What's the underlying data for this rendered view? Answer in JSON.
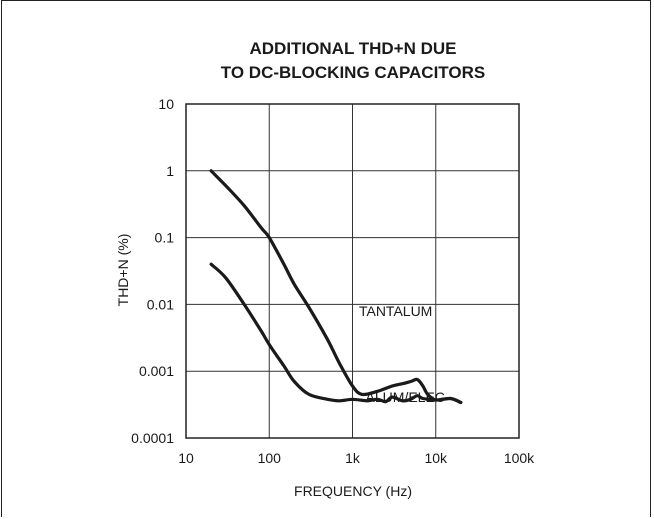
{
  "chart_data": {
    "type": "line",
    "title": [
      "ADDITIONAL THD+N DUE",
      "TO DC-BLOCKING CAPACITORS"
    ],
    "xlabel": "FREQUENCY (Hz)",
    "ylabel": "THD+N (%)",
    "x_scale": "log",
    "y_scale": "log",
    "xlim": [
      10,
      100000
    ],
    "ylim": [
      0.0001,
      10
    ],
    "x_ticks": [
      {
        "value": 10,
        "label": "10"
      },
      {
        "value": 100,
        "label": "100"
      },
      {
        "value": 1000,
        "label": "1k"
      },
      {
        "value": 10000,
        "label": "10k"
      },
      {
        "value": 100000,
        "label": "100k"
      }
    ],
    "y_ticks": [
      {
        "value": 10,
        "label": "10"
      },
      {
        "value": 1,
        "label": "1"
      },
      {
        "value": 0.1,
        "label": "0.1"
      },
      {
        "value": 0.01,
        "label": "0.01"
      },
      {
        "value": 0.001,
        "label": "0.001"
      },
      {
        "value": 0.0001,
        "label": "0.0001"
      }
    ],
    "grid": true,
    "series": [
      {
        "name": "TANTALUM",
        "points": [
          [
            20,
            1.0
          ],
          [
            30,
            0.6
          ],
          [
            50,
            0.3
          ],
          [
            80,
            0.14
          ],
          [
            100,
            0.1
          ],
          [
            150,
            0.04
          ],
          [
            200,
            0.02
          ],
          [
            300,
            0.009
          ],
          [
            500,
            0.003
          ],
          [
            700,
            0.0013
          ],
          [
            1000,
            0.0006
          ],
          [
            1300,
            0.00045
          ],
          [
            2000,
            0.0005
          ],
          [
            3000,
            0.0006
          ],
          [
            4000,
            0.00065
          ],
          [
            5000,
            0.0007
          ],
          [
            6000,
            0.00075
          ],
          [
            7000,
            0.0006
          ],
          [
            8000,
            0.00045
          ],
          [
            10000,
            0.00037
          ],
          [
            15000,
            0.00039
          ],
          [
            20000,
            0.00034
          ]
        ]
      },
      {
        "name": "ALUM/ELEC",
        "points": [
          [
            20,
            0.04
          ],
          [
            30,
            0.025
          ],
          [
            50,
            0.01
          ],
          [
            80,
            0.004
          ],
          [
            100,
            0.0025
          ],
          [
            150,
            0.0012
          ],
          [
            200,
            0.0007
          ],
          [
            300,
            0.00045
          ],
          [
            500,
            0.00038
          ],
          [
            700,
            0.00036
          ],
          [
            1000,
            0.00038
          ],
          [
            1500,
            0.00036
          ],
          [
            2000,
            0.00038
          ],
          [
            2500,
            0.00035
          ],
          [
            3000,
            0.00041
          ],
          [
            4000,
            0.00036
          ],
          [
            5000,
            0.00038
          ],
          [
            6000,
            0.00043
          ],
          [
            7000,
            0.00039
          ],
          [
            10000,
            0.00037
          ],
          [
            15000,
            0.00039
          ],
          [
            20000,
            0.00034
          ]
        ]
      }
    ],
    "annotations": [
      {
        "text": "TANTALUM",
        "x": 3300,
        "y": 0.008
      },
      {
        "text": "ALUM/ELEC",
        "x": 4300,
        "y": 0.00041
      }
    ]
  }
}
